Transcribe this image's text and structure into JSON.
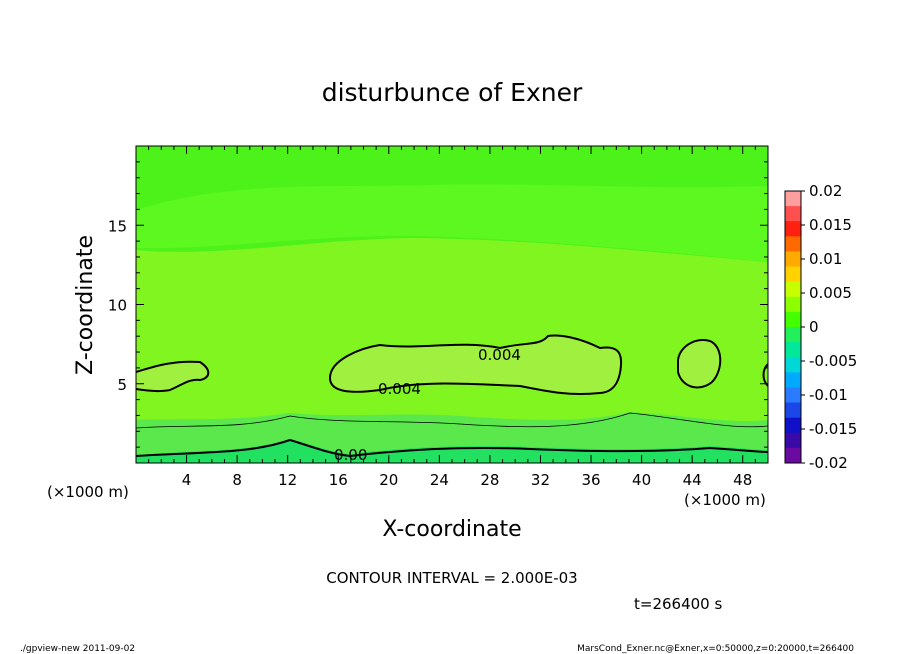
{
  "chart_data": {
    "type": "heatmap",
    "title": "disturbunce of Exner",
    "xlabel": "X-coordinate",
    "ylabel": "Z-coordinate",
    "x_unit_left": "(×1000 m)",
    "x_unit_right": "(×1000 m)",
    "xlim": [
      0,
      50
    ],
    "ylim": [
      0,
      20
    ],
    "x_ticks": [
      "4",
      "8",
      "12",
      "16",
      "20",
      "24",
      "28",
      "32",
      "36",
      "40",
      "44",
      "48"
    ],
    "y_ticks": [
      "5",
      "10",
      "15"
    ],
    "colorbar": {
      "ticks": [
        "0.02",
        "0.015",
        "0.01",
        "0.005",
        "0",
        "-0.005",
        "-0.01",
        "-0.015",
        "-0.02"
      ],
      "colors": [
        "#ff9e9e",
        "#ff5050",
        "#ff2010",
        "#ff6a00",
        "#ffaa00",
        "#ffd200",
        "#c8ff00",
        "#8cff00",
        "#44ff00",
        "#22f05a",
        "#00e89a",
        "#00d8d8",
        "#00aaff",
        "#2b7bff",
        "#1b47e8",
        "#1010c8",
        "#3a0aa8",
        "#6a0aa0"
      ]
    },
    "field_colors": {
      "top": "#4cf21a",
      "upper_band": "#5cf820",
      "mid": "#80f520",
      "blob": "#a0f040",
      "lower_band": "#5ae84c",
      "bottom": "#22e060"
    },
    "contour_labels": [
      "0.004",
      "0.004",
      "0.00"
    ],
    "contour_interval": "CONTOUR INTERVAL = 2.000E-03",
    "time": "t=266400 s",
    "footer_left": "./gpview-new  2011-09-02",
    "footer_right": "MarsCond_Exner.nc@Exner,x=0:50000,z=0:20000,t=266400"
  }
}
